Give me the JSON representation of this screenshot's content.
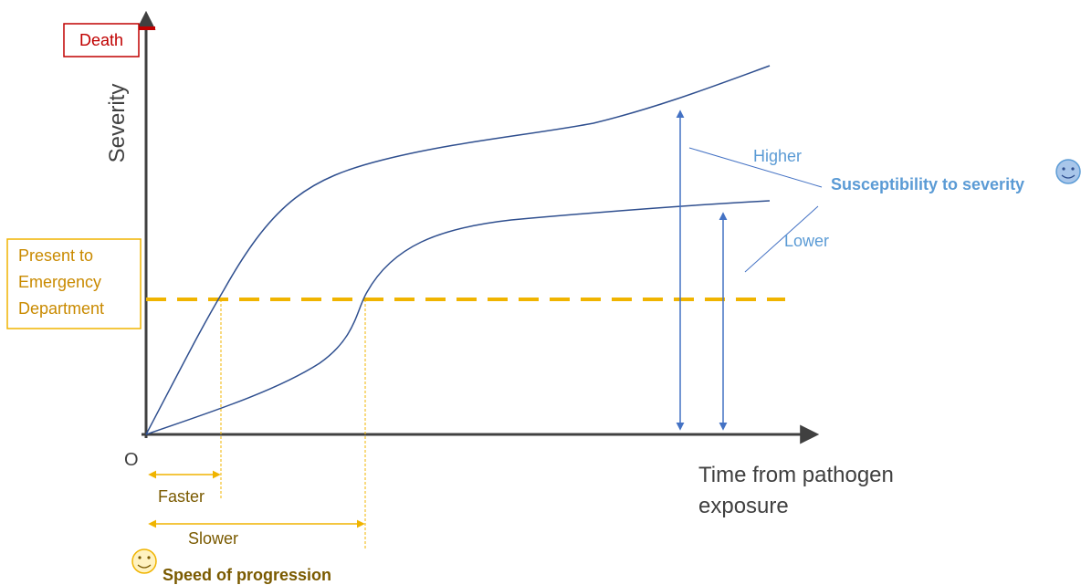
{
  "y_axis": {
    "label": "Severity",
    "origin_label": "O"
  },
  "x_axis": {
    "label_lines": [
      "Time from pathogen",
      "exposure"
    ]
  },
  "death_box": {
    "label": "Death",
    "color": "#c00000"
  },
  "ed_box": {
    "label_lines": [
      "Present to",
      "Emergency",
      "Department"
    ],
    "color": "#f0b400"
  },
  "progression": {
    "faster_label": "Faster",
    "slower_label": "Slower",
    "title": "Speed of progression",
    "icon": "smiley-icon"
  },
  "susceptibility": {
    "higher_label": "Higher",
    "lower_label": "Lower",
    "title": "Susceptibility to severity",
    "icon": "smiley-icon",
    "color": "#5b9bd5"
  },
  "colors": {
    "curve": "#2f4f8f",
    "axis": "#404040",
    "threshold": "#f0b400"
  }
}
